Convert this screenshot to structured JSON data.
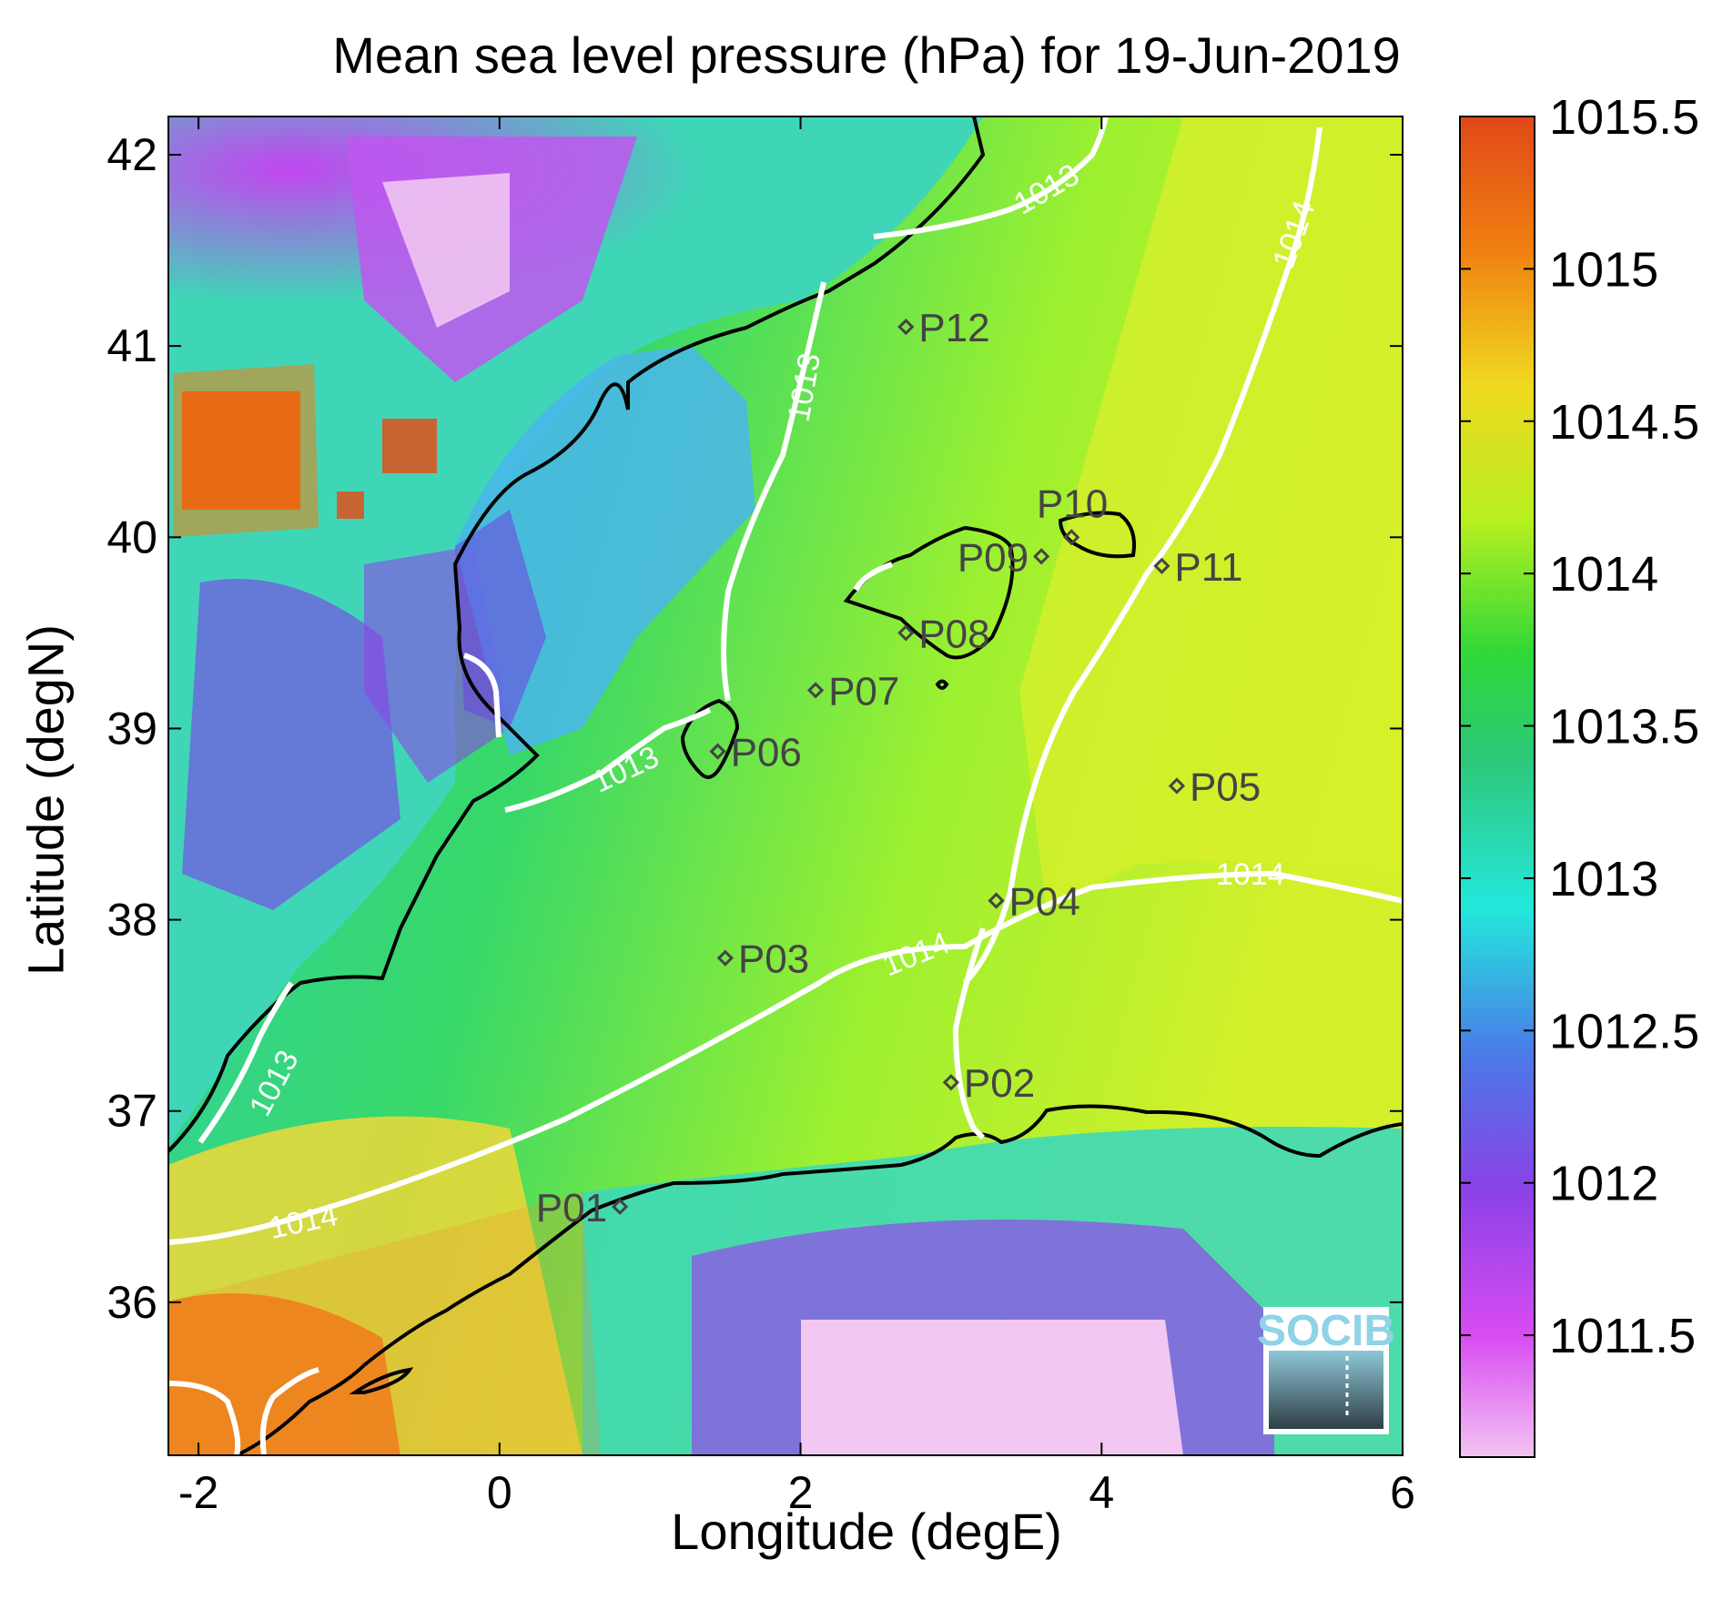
{
  "title": "Mean sea level pressure (hPa) for 19-Jun-2019",
  "xlabel": "Longitude (degE)",
  "ylabel": "Latitude (degN)",
  "x_ticks": [
    "-2",
    "0",
    "2",
    "4",
    "6"
  ],
  "y_ticks": [
    "42",
    "41",
    "40",
    "39",
    "38",
    "37",
    "36"
  ],
  "colorbar": {
    "ticks": [
      "1015.5",
      "1015",
      "1014.5",
      "1014",
      "1013.5",
      "1013",
      "1012.5",
      "1012",
      "1011.5"
    ],
    "colors": [
      "#e04a1a",
      "#f07010",
      "#f5c020",
      "#e8f020",
      "#30d030",
      "#20e8c8",
      "#40b0f0",
      "#7040e0",
      "#c040f0",
      "#f0c0f0"
    ]
  },
  "chart_data": {
    "type": "heatmap",
    "variable": "Mean sea level pressure",
    "units": "hPa",
    "date": "19-Jun-2019",
    "xlim": [
      -2.2,
      6.0
    ],
    "ylim": [
      35.2,
      42.2
    ],
    "clim": [
      1011.1,
      1015.5
    ],
    "stations": [
      {
        "name": "P01",
        "lon": 0.8,
        "lat": 36.5
      },
      {
        "name": "P02",
        "lon": 3.0,
        "lat": 37.15
      },
      {
        "name": "P03",
        "lon": 1.5,
        "lat": 37.8
      },
      {
        "name": "P04",
        "lon": 3.3,
        "lat": 38.1
      },
      {
        "name": "P05",
        "lon": 4.5,
        "lat": 38.7
      },
      {
        "name": "P06",
        "lon": 1.45,
        "lat": 38.88
      },
      {
        "name": "P07",
        "lon": 2.1,
        "lat": 39.2
      },
      {
        "name": "P08",
        "lon": 2.7,
        "lat": 39.5
      },
      {
        "name": "P09",
        "lon": 3.6,
        "lat": 39.9
      },
      {
        "name": "P10",
        "lon": 3.8,
        "lat": 40.0
      },
      {
        "name": "P11",
        "lon": 4.4,
        "lat": 39.85
      },
      {
        "name": "P12",
        "lon": 2.7,
        "lat": 41.1
      }
    ],
    "contour_labels": [
      "1013",
      "1013",
      "1013",
      "1013",
      "1014",
      "1014",
      "1014",
      "1014"
    ]
  },
  "logo": {
    "text": "SOCIB"
  }
}
